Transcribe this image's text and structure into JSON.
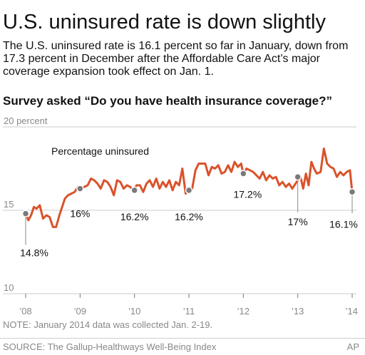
{
  "header": {
    "title": "U.S. uninsured rate is down slightly",
    "description": "The U.S. uninsured rate is 16.1 percent so far in January, down from 17.3 percent in December after the Affordable Care Act’s major coverage expansion took effect on Jan. 1.",
    "subhead": "Survey asked “Do you have health insurance coverage?”"
  },
  "footer": {
    "note": "NOTE: January 2014 data was collected Jan. 2-19.",
    "source": "SOURCE: The Gallup-Healthways Well-Being Index",
    "credit": "AP"
  },
  "colors": {
    "line": "#d9532b",
    "marker": "#7a7a7a",
    "grid": "#cccccc",
    "axis_text": "#888888"
  },
  "chart_data": {
    "type": "line",
    "title": "",
    "ylabel": "",
    "ylim": [
      10,
      20
    ],
    "y_ticks": [
      {
        "value": 20,
        "label": "20 percent"
      },
      {
        "value": 15,
        "label": "15"
      },
      {
        "value": 10,
        "label": "10"
      }
    ],
    "xlim": [
      2008,
      2014
    ],
    "x_ticks": [
      {
        "value": 2008,
        "label": "’08"
      },
      {
        "value": 2009,
        "label": "’09"
      },
      {
        "value": 2010,
        "label": "’10"
      },
      {
        "value": 2011,
        "label": "’11"
      },
      {
        "value": 2012,
        "label": "’12"
      },
      {
        "value": 2013,
        "label": "’13"
      },
      {
        "value": 2014,
        "label": "’14"
      }
    ],
    "grid": true,
    "series": [
      {
        "name": "Percentage uninsured",
        "x": [
          2008.0,
          2008.05,
          2008.1,
          2008.15,
          2008.2,
          2008.26,
          2008.32,
          2008.38,
          2008.44,
          2008.5,
          2008.56,
          2008.62,
          2008.66,
          2008.72,
          2008.78,
          2008.84,
          2008.9,
          2008.96,
          2009.02,
          2009.08,
          2009.14,
          2009.2,
          2009.26,
          2009.32,
          2009.38,
          2009.44,
          2009.5,
          2009.56,
          2009.62,
          2009.68,
          2009.74,
          2009.8,
          2009.86,
          2009.92,
          2009.98,
          2010.04,
          2010.1,
          2010.16,
          2010.22,
          2010.28,
          2010.34,
          2010.4,
          2010.46,
          2010.52,
          2010.58,
          2010.64,
          2010.7,
          2010.76,
          2010.82,
          2010.88,
          2010.94,
          2011.0,
          2011.06,
          2011.12,
          2011.18,
          2011.24,
          2011.3,
          2011.36,
          2011.42,
          2011.48,
          2011.54,
          2011.6,
          2011.66,
          2011.72,
          2011.78,
          2011.84,
          2011.9,
          2011.96,
          2012.0,
          2012.06,
          2012.12,
          2012.18,
          2012.24,
          2012.3,
          2012.36,
          2012.42,
          2012.48,
          2012.54,
          2012.6,
          2012.66,
          2012.72,
          2012.78,
          2012.84,
          2012.9,
          2012.96,
          2013.0,
          2013.05,
          2013.1,
          2013.15,
          2013.2,
          2013.25,
          2013.3,
          2013.35,
          2013.42,
          2013.48,
          2013.54,
          2013.6,
          2013.66,
          2013.72,
          2013.78,
          2013.84,
          2013.9,
          2013.96,
          2014.0
        ],
        "values": [
          14.8,
          14.4,
          14.7,
          15.2,
          15.1,
          15.3,
          14.5,
          14.7,
          14.6,
          14.0,
          14.0,
          14.7,
          15.1,
          15.7,
          15.9,
          16.0,
          16.1,
          16.4,
          16.3,
          16.4,
          16.5,
          16.9,
          16.8,
          16.6,
          16.3,
          16.8,
          16.7,
          16.4,
          15.9,
          16.8,
          16.7,
          16.3,
          16.5,
          16.4,
          16.2,
          16.5,
          16.5,
          16.1,
          16.6,
          16.8,
          16.4,
          16.9,
          16.3,
          16.7,
          16.4,
          16.8,
          16.2,
          16.7,
          16.5,
          17.5,
          16.0,
          16.2,
          16.3,
          17.4,
          17.8,
          17.8,
          17.8,
          17.1,
          17.6,
          17.5,
          17.7,
          17.2,
          17.3,
          17.7,
          17.3,
          17.9,
          17.6,
          17.8,
          17.2,
          17.5,
          17.4,
          17.3,
          17.1,
          16.9,
          17.3,
          16.8,
          17.1,
          16.9,
          17.0,
          16.5,
          16.7,
          16.4,
          16.6,
          16.3,
          16.6,
          16.8,
          17.0,
          16.3,
          17.2,
          16.5,
          17.9,
          17.5,
          17.2,
          17.3,
          18.7,
          17.8,
          17.6,
          17.5,
          17.0,
          17.3,
          17.1,
          17.3,
          17.4,
          16.1
        ]
      }
    ],
    "annotations": [
      {
        "x": 2008.0,
        "y": 14.8,
        "label": "14.8%"
      },
      {
        "x": 2009.0,
        "y": 16.3,
        "label": "16%"
      },
      {
        "x": 2010.0,
        "y": 16.2,
        "label": "16.2%"
      },
      {
        "x": 2011.0,
        "y": 16.2,
        "label": "16.2%"
      },
      {
        "x": 2012.0,
        "y": 17.2,
        "label": "17.2%"
      },
      {
        "x": 2013.0,
        "y": 17.0,
        "label": "17%"
      },
      {
        "x": 2014.0,
        "y": 16.1,
        "label": "16.1%"
      }
    ]
  }
}
